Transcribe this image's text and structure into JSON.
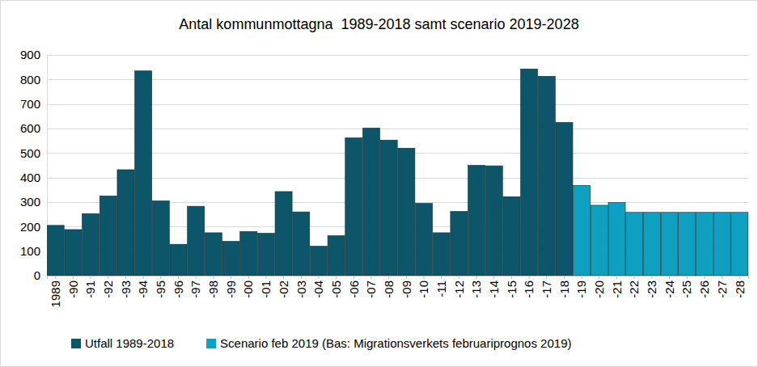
{
  "chart_data": {
    "type": "bar",
    "title": "Antal kommunmottagna  1989-2018 samt scenario 2019-2028",
    "categories": [
      "1989",
      "-90",
      "-91",
      "-92",
      "-93",
      "-94",
      "-95",
      "-96",
      "-97",
      "-98",
      "-99",
      "-00",
      "-01",
      "-02",
      "-03",
      "-04",
      "-05",
      "-06",
      "-07",
      "-08",
      "-09",
      "-10",
      "-11",
      "-12",
      "-13",
      "-14",
      "-15",
      "-16",
      "-17",
      "-18",
      "-19",
      "-20",
      "-21",
      "-22",
      "-23",
      "-24",
      "-25",
      "-26",
      "-27",
      "-28"
    ],
    "series": [
      {
        "name": "Utfall 1989-2018",
        "color": "#0d5568",
        "values": [
          205,
          188,
          253,
          325,
          432,
          835,
          305,
          128,
          283,
          175,
          140,
          180,
          173,
          343,
          260,
          120,
          163,
          562,
          602,
          553,
          520,
          295,
          175,
          262,
          450,
          448,
          322,
          843,
          813,
          625,
          null,
          null,
          null,
          null,
          null,
          null,
          null,
          null,
          null,
          null
        ]
      },
      {
        "name": "Scenario feb 2019 (Bas: Migrationsverkets februariprognos 2019)",
        "color": "#0fa0c1",
        "values": [
          null,
          null,
          null,
          null,
          null,
          null,
          null,
          null,
          null,
          null,
          null,
          null,
          null,
          null,
          null,
          null,
          null,
          null,
          null,
          null,
          null,
          null,
          null,
          null,
          null,
          null,
          null,
          null,
          null,
          null,
          368,
          287,
          298,
          258,
          258,
          258,
          258,
          258,
          258,
          258
        ]
      }
    ],
    "ylim": [
      0,
      900
    ],
    "yticks": [
      0,
      100,
      200,
      300,
      400,
      500,
      600,
      700,
      800,
      900
    ],
    "grid": true,
    "legend": "bottom"
  }
}
